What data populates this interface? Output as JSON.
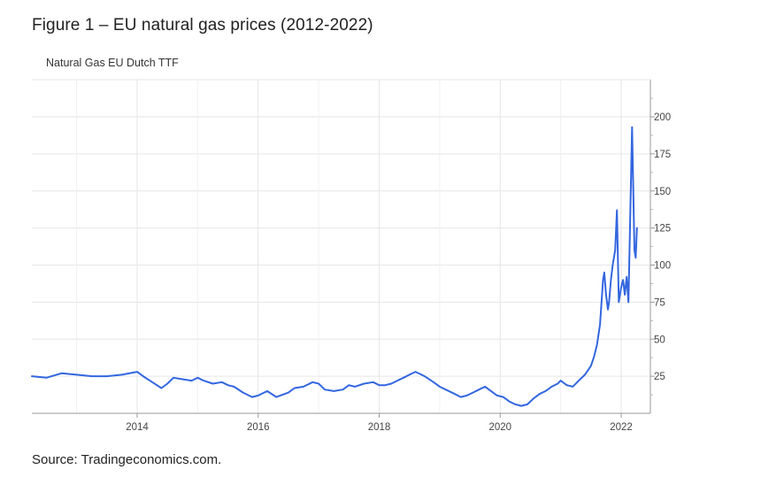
{
  "figure_title": "Figure 1 – EU natural gas prices (2012-2022)",
  "source": "Source: Tradingeconomics.com.",
  "chart_data": {
    "type": "line",
    "title": "Natural Gas EU Dutch TTF",
    "xlabel": "",
    "ylabel": "",
    "x_ticks": [
      "2014",
      "2016",
      "2018",
      "2020",
      "2022"
    ],
    "y_ticks": [
      25,
      50,
      75,
      100,
      125,
      150,
      175,
      200
    ],
    "ylim": [
      0,
      215
    ],
    "grid": true,
    "y_axis_side": "right",
    "line_color": "#3366e0",
    "series": [
      {
        "x": [
          2012.25,
          2012.5,
          2012.75,
          2013.0,
          2013.25,
          2013.5,
          2013.75,
          2014.0,
          2014.1,
          2014.25,
          2014.4,
          2014.5,
          2014.6,
          2014.75,
          2014.9,
          2015.0,
          2015.1,
          2015.25,
          2015.4,
          2015.5,
          2015.6,
          2015.75,
          2015.9,
          2016.0,
          2016.15,
          2016.3,
          2016.5,
          2016.6,
          2016.75,
          2016.9,
          2017.0,
          2017.1,
          2017.25,
          2017.4,
          2017.5,
          2017.6,
          2017.75,
          2017.9,
          2018.0,
          2018.1,
          2018.2,
          2018.3,
          2018.4,
          2018.5,
          2018.6,
          2018.7,
          2018.75,
          2018.9,
          2019.0,
          2019.1,
          2019.25,
          2019.35,
          2019.45,
          2019.55,
          2019.65,
          2019.75,
          2019.85,
          2019.95,
          2020.05,
          2020.15,
          2020.25,
          2020.35,
          2020.45,
          2020.55,
          2020.65,
          2020.75,
          2020.85,
          2020.95,
          2021.0,
          2021.1,
          2021.2,
          2021.3,
          2021.4,
          2021.5,
          2021.55,
          2021.6,
          2021.65,
          2021.7,
          2021.72,
          2021.75,
          2021.78,
          2021.8,
          2021.83,
          2021.86,
          2021.9,
          2021.93,
          2021.96,
          2022.0,
          2022.03,
          2022.06,
          2022.09,
          2022.12,
          2022.15,
          2022.18,
          2022.2,
          2022.22,
          2022.24,
          2022.26
        ],
        "values": [
          25,
          24,
          27,
          26,
          25,
          25,
          26,
          28,
          25,
          21,
          17,
          20,
          24,
          23,
          22,
          24,
          22,
          20,
          21,
          19,
          18,
          14,
          11,
          12,
          15,
          11,
          14,
          17,
          18,
          21,
          20,
          16,
          15,
          16,
          19,
          18,
          20,
          21,
          19,
          19,
          20,
          22,
          24,
          26,
          28,
          26,
          25,
          21,
          18,
          16,
          13,
          11,
          12,
          14,
          16,
          18,
          15,
          12,
          11,
          8,
          6,
          5,
          6,
          10,
          13,
          15,
          18,
          20,
          22,
          19,
          18,
          22,
          26,
          32,
          38,
          46,
          60,
          90,
          95,
          80,
          70,
          75,
          90,
          100,
          110,
          137,
          75,
          85,
          90,
          80,
          92,
          75,
          135,
          193,
          150,
          110,
          105,
          125
        ]
      }
    ]
  }
}
